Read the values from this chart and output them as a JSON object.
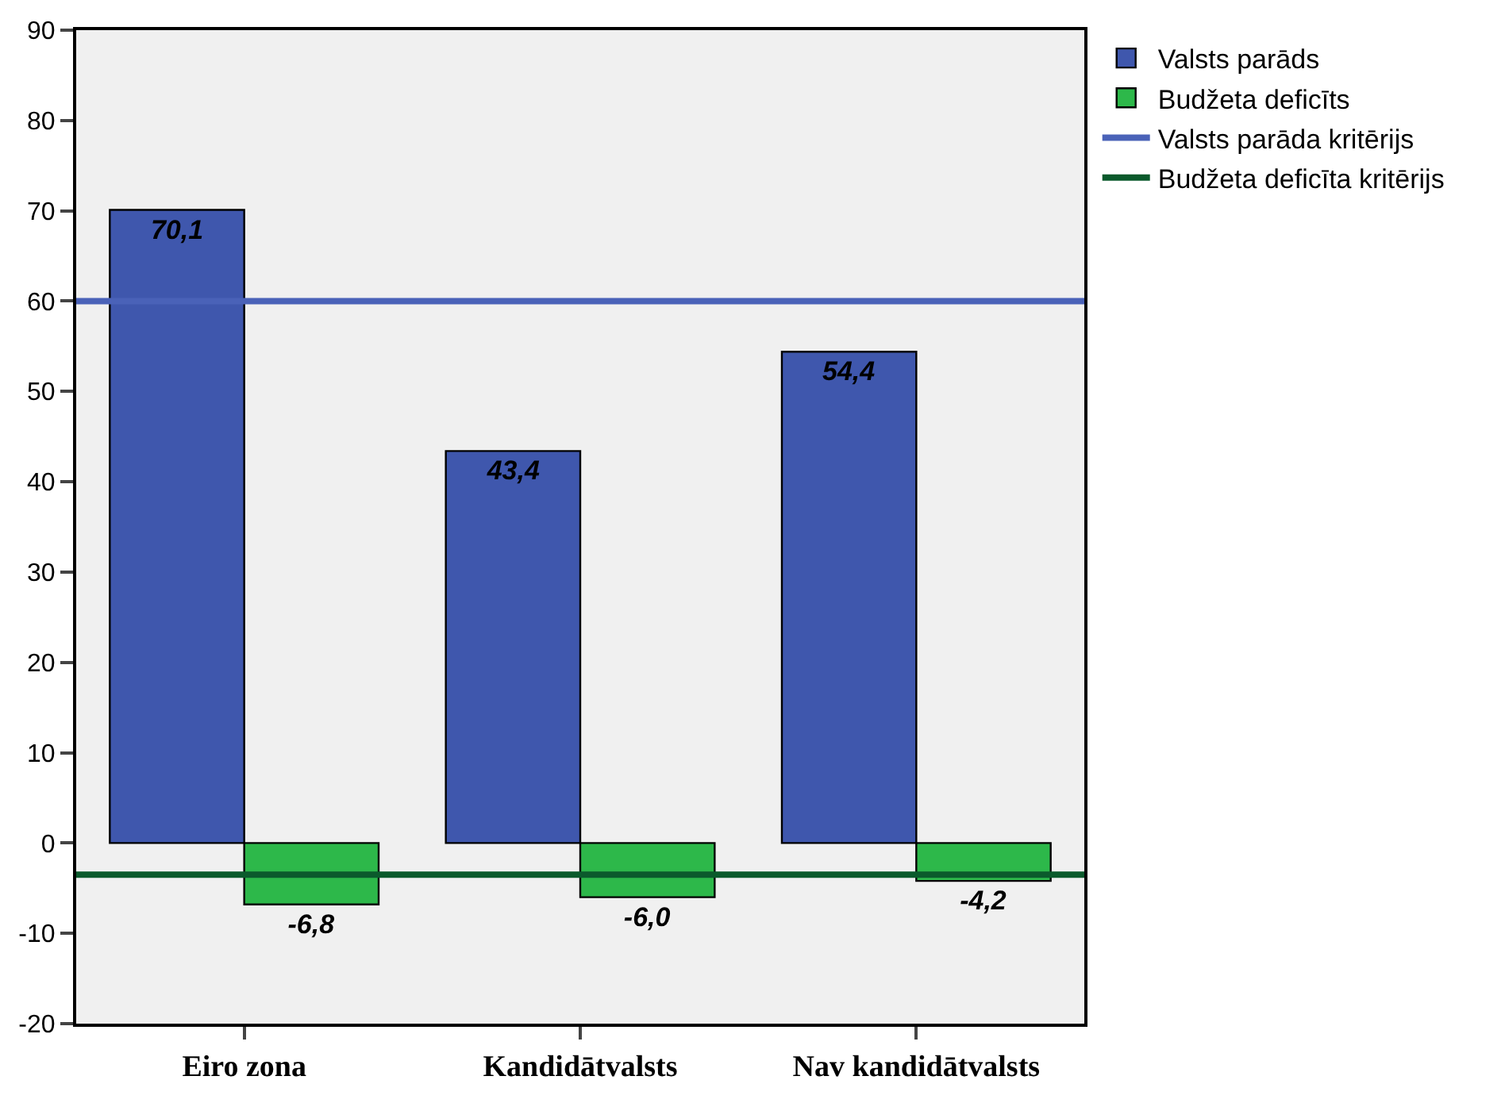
{
  "chart_data": {
    "type": "bar",
    "categories": [
      "Eiro zona",
      "Kandidātvalsts",
      "Nav kandidātvalsts"
    ],
    "series": [
      {
        "name": "Valsts parāds",
        "color": "#3f57ad",
        "values": [
          70.1,
          43.4,
          54.4
        ],
        "value_labels": [
          "70,1",
          "43,4",
          "54,4"
        ]
      },
      {
        "name": "Budžeta deficīts",
        "color": "#2db84a",
        "values": [
          -6.8,
          -6.0,
          -4.2
        ],
        "value_labels": [
          "-6,8",
          "-6,0",
          "-4,2"
        ]
      }
    ],
    "ref_lines": [
      {
        "axis": "y",
        "value": 60,
        "label": "Valsts parāda kritērijs",
        "color": "#4a62b8"
      },
      {
        "axis": "y",
        "value": -3.5,
        "label": "Budžeta deficīta kritērijs",
        "color": "#0b5a2c"
      }
    ],
    "ylim": [
      -20,
      90
    ],
    "yticks": [
      -20,
      -10,
      0,
      10,
      20,
      30,
      40,
      50,
      60,
      70,
      80,
      90
    ],
    "grid": false,
    "legend": "top right"
  }
}
